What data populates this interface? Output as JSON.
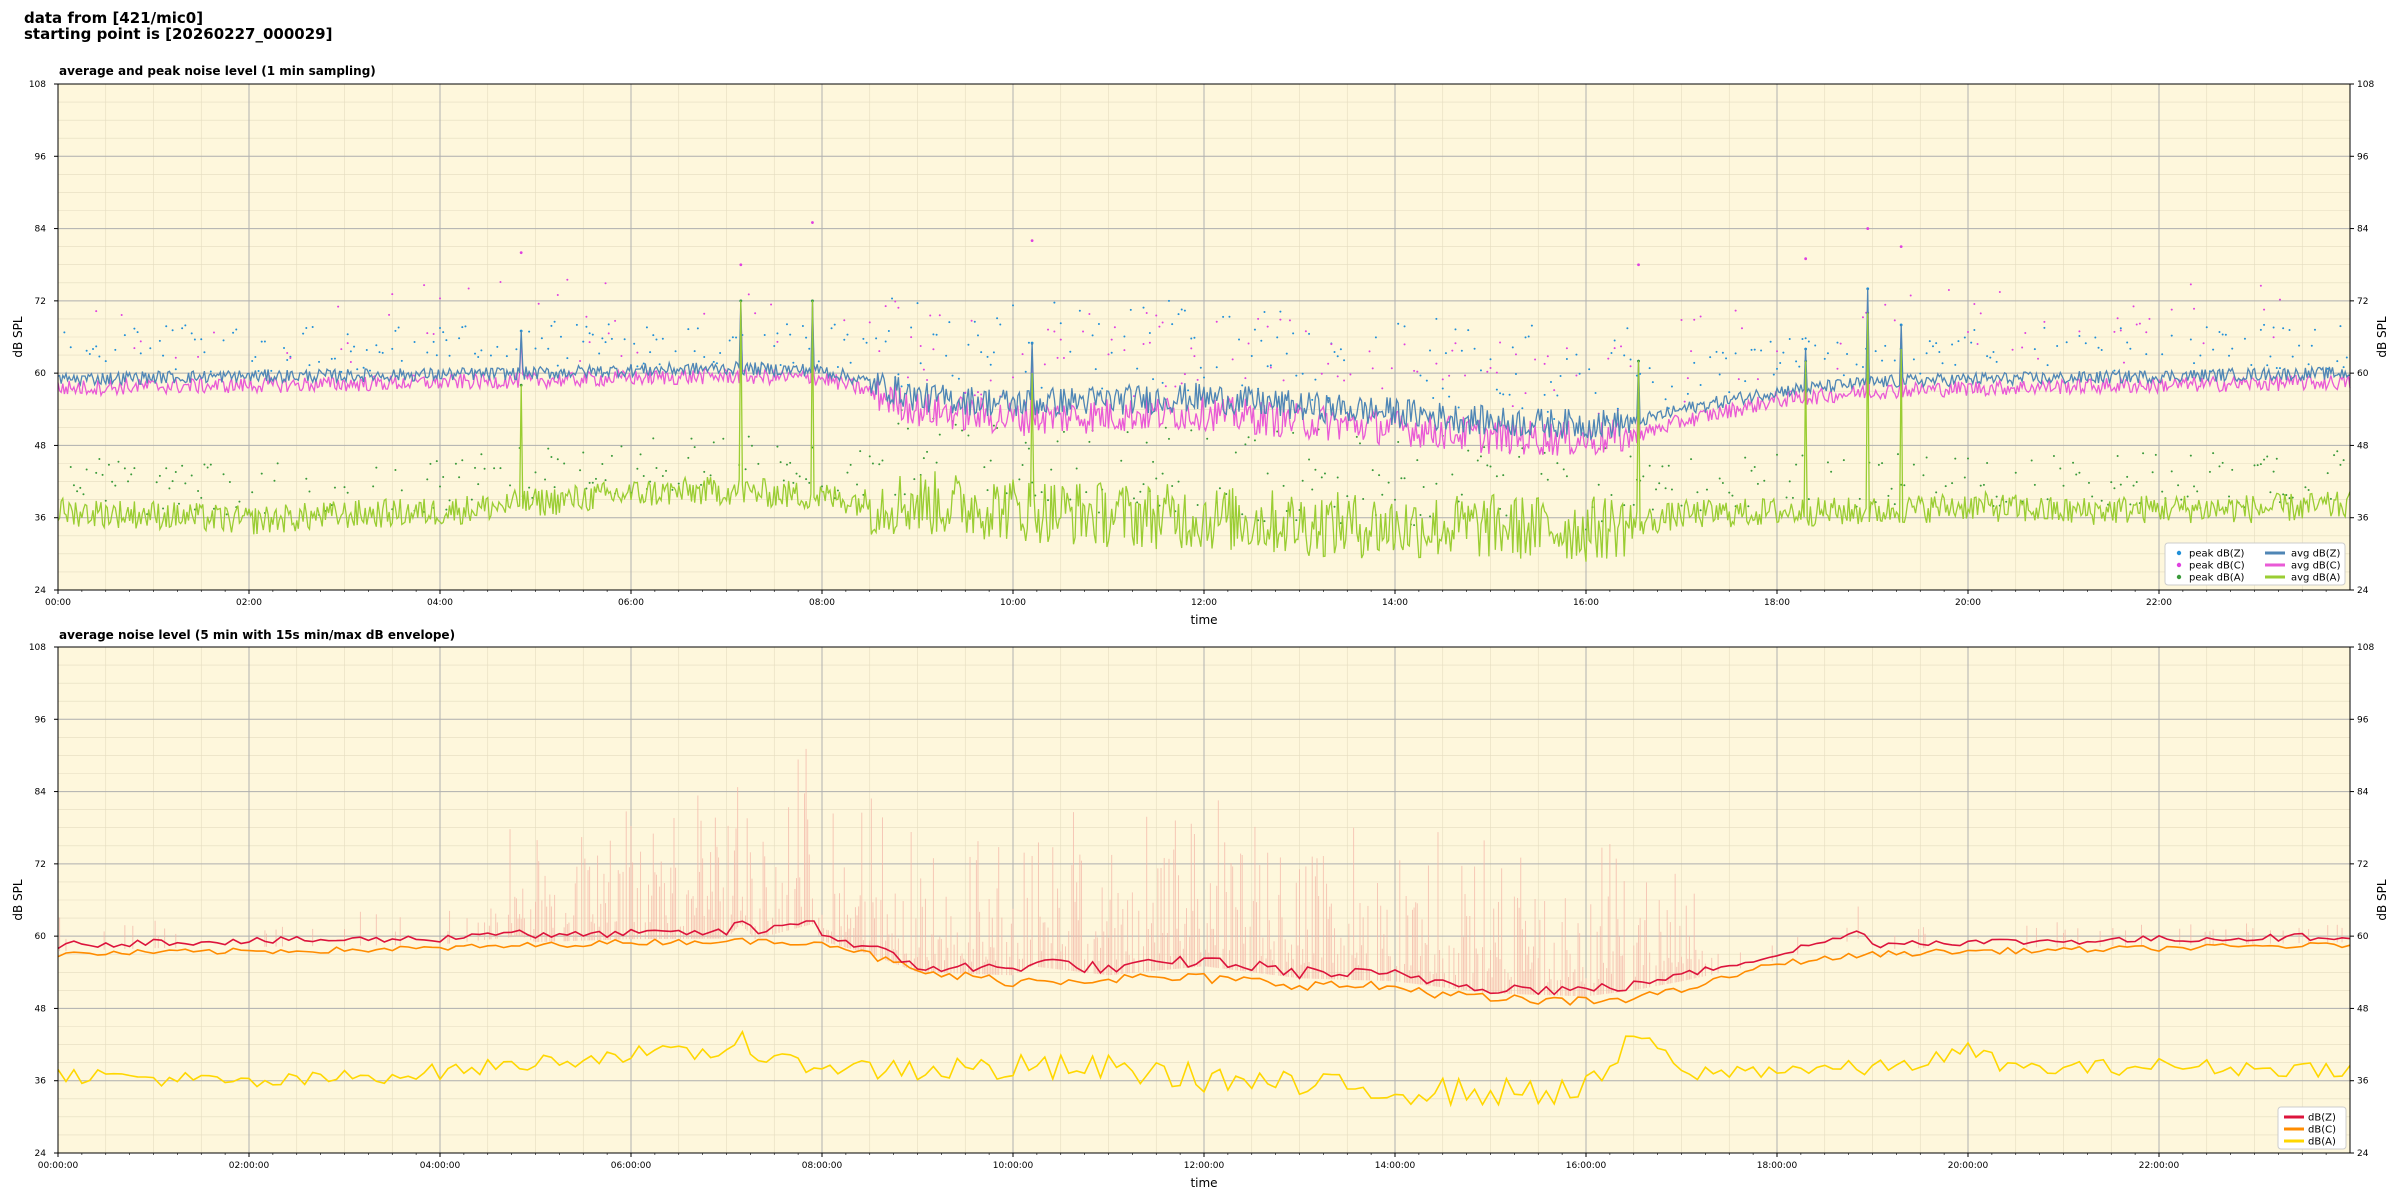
{
  "header": {
    "line1": "data from [421/mic0]",
    "line2": "starting point is [20260227_000029]"
  },
  "colors": {
    "plot_bg": "#fef7dc",
    "z": "#4f86b5",
    "c": "#e95ad6",
    "a": "#9acd32",
    "peak_z": "#1f8fd8",
    "peak_c": "#e040e0",
    "peak_a": "#3a9a3a",
    "z2": "#dc143c",
    "c2": "#ff8c00",
    "a2": "#ffd700",
    "envelope": "#f4b8a8"
  },
  "chart_data": [
    {
      "type": "line",
      "title": "average and peak noise level (1 min sampling)",
      "xlabel": "time",
      "ylabel": "dB SPL",
      "ylim": [
        24,
        108
      ],
      "xlim_hours": [
        0,
        24
      ],
      "yticks": [
        "24",
        "36",
        "48",
        "60",
        "72",
        "84",
        "96",
        "108"
      ],
      "xticks": [
        "00:00",
        "02:00",
        "04:00",
        "06:00",
        "08:00",
        "10:00",
        "12:00",
        "14:00",
        "16:00",
        "18:00",
        "20:00",
        "22:00"
      ],
      "grid": true,
      "legend_position": "bottom-right",
      "legend": [
        "peak dB(Z)",
        "peak dB(C)",
        "peak dB(A)",
        "avg dB(Z)",
        "avg dB(C)",
        "avg dB(A)"
      ],
      "series": [
        {
          "name": "avg dB(Z)",
          "x_hours": [
            0,
            1,
            2,
            3,
            4,
            5,
            6,
            7,
            8,
            8.5,
            9,
            10,
            11,
            12,
            13,
            14,
            15,
            16,
            16.5,
            17,
            18,
            19,
            20,
            21,
            22,
            23,
            24
          ],
          "values": [
            59,
            59.3,
            59.5,
            59.6,
            59.8,
            60,
            60.5,
            60.8,
            60.5,
            58.5,
            56,
            55,
            55.5,
            56,
            54.5,
            53.5,
            52,
            51.5,
            51.8,
            54,
            57,
            58.5,
            59,
            59.2,
            59.5,
            59.8,
            60
          ]
        },
        {
          "name": "avg dB(C)",
          "x_hours": [
            0,
            1,
            2,
            3,
            4,
            5,
            6,
            7,
            8,
            8.5,
            9,
            10,
            11,
            12,
            13,
            14,
            15,
            16,
            16.5,
            17,
            18,
            19,
            20,
            21,
            22,
            23,
            24
          ],
          "values": [
            57.5,
            57.8,
            58,
            58.2,
            58.5,
            58.8,
            59.2,
            59.5,
            59.2,
            57,
            54,
            52.5,
            53,
            53.5,
            52,
            51,
            49.5,
            49,
            49.5,
            52,
            55.5,
            57,
            57.5,
            57.8,
            58,
            58.3,
            58.5
          ]
        },
        {
          "name": "avg dB(A)",
          "x_hours": [
            0,
            1,
            2,
            3,
            4,
            5,
            6,
            7,
            8,
            8.5,
            9,
            10,
            11,
            12,
            13,
            14,
            15,
            16,
            16.5,
            17,
            18,
            19,
            20,
            21,
            22,
            23,
            24
          ],
          "values": [
            37,
            36.5,
            35.5,
            36.5,
            37,
            38.5,
            40,
            40.5,
            39.5,
            38.5,
            38.5,
            37.5,
            36.5,
            36,
            35,
            34.5,
            34.5,
            34,
            35,
            36.5,
            37,
            37,
            38,
            37,
            37.5,
            37.5,
            38
          ]
        },
        {
          "name": "peak dB(Z)",
          "x_hours": [
            4.85,
            7.15,
            7.9,
            10.2,
            16.55,
            18.3,
            18.95,
            19.3
          ],
          "values": [
            67,
            72,
            72,
            65,
            62,
            64,
            74,
            68
          ]
        },
        {
          "name": "peak dB(C)",
          "x_hours": [
            4.85,
            7.15,
            7.9,
            10.2,
            16.55,
            18.3,
            18.95,
            19.3
          ],
          "values": [
            80,
            78,
            85,
            82,
            78,
            79,
            84,
            81
          ]
        },
        {
          "name": "peak dB(A)",
          "x_hours": [
            4.85,
            7.15,
            7.9,
            10.2,
            16.55,
            18.3,
            18.95,
            19.3
          ],
          "values": [
            58,
            72,
            72,
            60,
            62,
            62,
            70,
            64
          ]
        }
      ]
    },
    {
      "type": "line",
      "title": "average noise level (5 min with 15s min/max dB envelope)",
      "xlabel": "time",
      "ylabel": "dB SPL",
      "ylim": [
        24,
        108
      ],
      "xlim_hours": [
        0,
        24
      ],
      "yticks": [
        "24",
        "36",
        "48",
        "60",
        "72",
        "84",
        "96",
        "108"
      ],
      "xticks": [
        "00:00:00",
        "02:00:00",
        "04:00:00",
        "06:00:00",
        "08:00:00",
        "10:00:00",
        "12:00:00",
        "14:00:00",
        "16:00:00",
        "18:00:00",
        "20:00:00",
        "22:00:00"
      ],
      "grid": true,
      "legend_position": "bottom-right",
      "legend": [
        "dB(Z)",
        "dB(C)",
        "dB(A)"
      ],
      "series": [
        {
          "name": "dB(Z)",
          "x_hours": [
            0,
            1,
            2,
            3,
            4,
            4.85,
            5,
            6,
            7,
            7.15,
            7.3,
            7.9,
            8,
            8.5,
            9,
            10,
            10.2,
            11,
            12,
            13,
            14,
            15,
            16,
            16.5,
            17,
            18,
            18.95,
            19,
            19.3,
            20,
            21,
            22,
            23,
            24
          ],
          "values": [
            58.5,
            59,
            59.2,
            59.4,
            59.6,
            61,
            60,
            60.5,
            60.6,
            63,
            60.5,
            63,
            60.2,
            58,
            55,
            54.5,
            56,
            54.5,
            56,
            54,
            53.5,
            51.5,
            51,
            52,
            53.5,
            57,
            61,
            58.5,
            59,
            59,
            59.2,
            59.5,
            59.7,
            60
          ]
        },
        {
          "name": "dB(C)",
          "x_hours": [
            0,
            1,
            2,
            3,
            4,
            5,
            6,
            7,
            8,
            8.5,
            9,
            10,
            11,
            12,
            13,
            14,
            15,
            16,
            17,
            18,
            19,
            20,
            21,
            22,
            23,
            24
          ],
          "values": [
            57,
            57.3,
            57.5,
            57.7,
            58,
            58.5,
            59,
            59.2,
            59,
            57,
            54,
            52.5,
            53,
            53,
            52,
            51.5,
            49.5,
            49,
            51,
            55.5,
            57,
            57.5,
            57.7,
            58,
            58.3,
            58.5
          ]
        },
        {
          "name": "dB(A)",
          "x_hours": [
            0,
            1,
            2,
            3,
            4,
            5,
            6,
            7,
            7.15,
            7.3,
            8,
            9,
            10,
            11,
            12,
            13,
            14,
            15,
            16,
            16.6,
            17,
            18,
            19,
            19.5,
            20,
            20.5,
            21,
            22,
            23,
            24
          ],
          "values": [
            37,
            36.5,
            35.5,
            36.5,
            37.5,
            39,
            40.5,
            40.5,
            45,
            39.5,
            38.5,
            38,
            38,
            38,
            36.5,
            35,
            34.5,
            34,
            34.5,
            44,
            37,
            38,
            38,
            39,
            41,
            38,
            38,
            38.5,
            38,
            38
          ]
        }
      ]
    }
  ]
}
